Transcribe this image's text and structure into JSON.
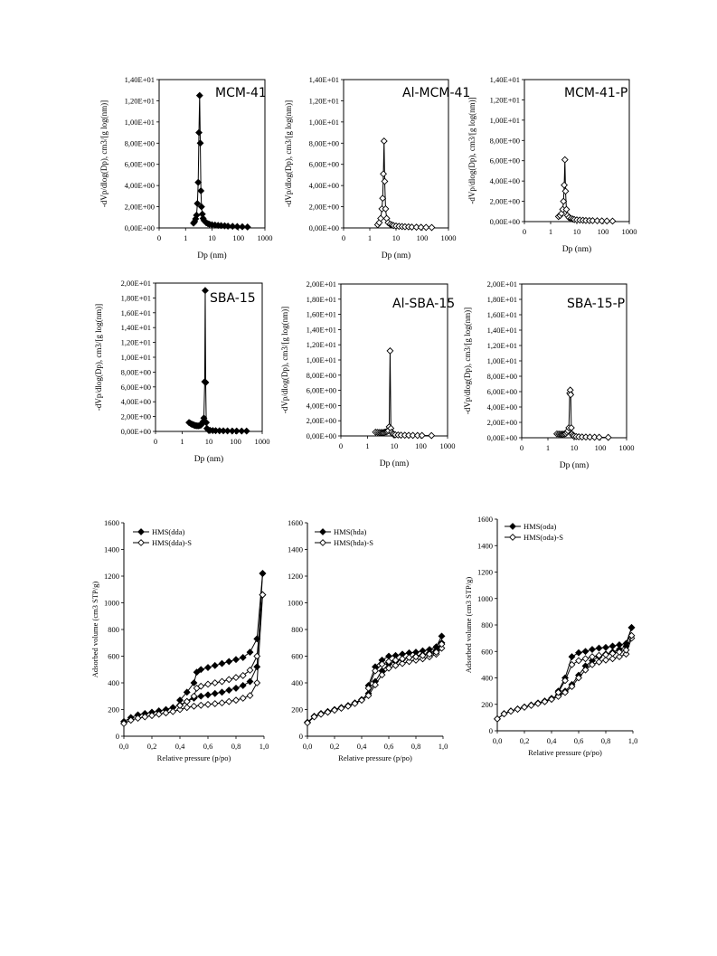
{
  "chart_data": [
    {
      "id": "mcm41",
      "type": "line",
      "title": "MCM-41",
      "xlabel": "Dp (nm)",
      "ylabel": "-dVp/dlog(Dp), cm3/[g log(nm)]",
      "xscale": "log",
      "xlim": [
        0,
        1000
      ],
      "xticks": [
        "0",
        "1",
        "10",
        "100",
        "1000"
      ],
      "ylim": [
        0,
        14
      ],
      "yticks": [
        "0,00E+00",
        "2,00E+00",
        "4,00E+00",
        "6,00E+00",
        "8,00E+00",
        "1,00E+01",
        "1,20E+01",
        "1,40E+01"
      ],
      "marker": "filled-diamond",
      "x": [
        2.0,
        2.2,
        2.4,
        2.6,
        2.8,
        3.0,
        3.2,
        3.4,
        3.6,
        3.8,
        4.0,
        4.3,
        4.6,
        5,
        6,
        7,
        8,
        10,
        13,
        17,
        22,
        30,
        40,
        60,
        90,
        140,
        220
      ],
      "values": [
        0.45,
        0.6,
        0.85,
        1.2,
        2.3,
        4.3,
        9.0,
        12.5,
        8.0,
        3.5,
        2.0,
        1.3,
        0.9,
        0.7,
        0.5,
        0.4,
        0.35,
        0.3,
        0.27,
        0.24,
        0.22,
        0.2,
        0.17,
        0.15,
        0.13,
        0.11,
        0.09
      ]
    },
    {
      "id": "almcm41",
      "type": "line",
      "title": "Al-MCM-41",
      "xlabel": "Dp (nm)",
      "ylabel": "-dVp/dlog(Dp), cm3/[g log(nm)]",
      "xscale": "log",
      "xlim": [
        0,
        1000
      ],
      "xticks": [
        "0",
        "1",
        "10",
        "100",
        "1000"
      ],
      "ylim": [
        0,
        14
      ],
      "yticks": [
        "0,00E+00",
        "2,00E+00",
        "4,00E+00",
        "6,00E+00",
        "8,00E+00",
        "1,00E+01",
        "1,20E+01",
        "1,40E+01"
      ],
      "marker": "open-diamond",
      "x": [
        2.0,
        2.3,
        2.6,
        2.9,
        3.1,
        3.3,
        3.5,
        3.7,
        4.0,
        4.4,
        5,
        6,
        7,
        8,
        10,
        13,
        17,
        22,
        30,
        40,
        60,
        90,
        140,
        230
      ],
      "values": [
        0.3,
        0.5,
        0.9,
        1.8,
        2.8,
        5.1,
        8.2,
        4.4,
        1.8,
        0.9,
        0.5,
        0.35,
        0.28,
        0.22,
        0.18,
        0.15,
        0.13,
        0.11,
        0.1,
        0.08,
        0.07,
        0.06,
        0.05,
        0.04
      ]
    },
    {
      "id": "mcm41p",
      "type": "line",
      "title": "MCM-41-P",
      "xlabel": "Dp (nm)",
      "ylabel": "-dVp/dlog(Dp), cm3/[g log(nm)]",
      "xscale": "log",
      "xlim": [
        0,
        1000
      ],
      "xticks": [
        "0",
        "1",
        "10",
        "100",
        "1000"
      ],
      "ylim": [
        0,
        14
      ],
      "yticks": [
        "0,00E+00",
        "2,00E+00",
        "4,00E+00",
        "6,00E+00",
        "8,00E+00",
        "1,00E+01",
        "1,20E+01",
        "1,40E+01"
      ],
      "marker": "open-diamond",
      "x": [
        2.0,
        2.3,
        2.6,
        2.9,
        3.1,
        3.3,
        3.5,
        3.7,
        4.0,
        4.4,
        5,
        6,
        7,
        8,
        10,
        13,
        17,
        22,
        30,
        40,
        60,
        90,
        140,
        230
      ],
      "values": [
        0.5,
        0.6,
        0.8,
        1.2,
        2.0,
        3.6,
        6.1,
        3.0,
        1.2,
        0.6,
        0.4,
        0.3,
        0.25,
        0.2,
        0.17,
        0.15,
        0.13,
        0.11,
        0.1,
        0.09,
        0.08,
        0.07,
        0.06,
        0.05
      ]
    },
    {
      "id": "sba15",
      "type": "line",
      "title": "SBA-15",
      "xlabel": "Dp (nm)",
      "ylabel": "-dVp/dlog(Dp), cm3/[g log(nm)]",
      "xscale": "log",
      "xlim": [
        0,
        1000
      ],
      "xticks": [
        "0",
        "1",
        "10",
        "100",
        "1000"
      ],
      "ylim": [
        0,
        20
      ],
      "yticks": [
        "0,00E+00",
        "2,00E+00",
        "4,00E+00",
        "6,00E+00",
        "8,00E+00",
        "1,00E+01",
        "1,20E+01",
        "1,40E+01",
        "1,60E+01",
        "1,80E+01",
        "2,00E+01"
      ],
      "marker": "filled-diamond",
      "x": [
        1.8,
        2.0,
        2.2,
        2.4,
        2.6,
        2.8,
        3.0,
        3.3,
        3.6,
        4.0,
        4.5,
        5,
        5.5,
        6,
        6.5,
        7.0,
        7.3,
        7.6,
        8.0,
        8.5,
        9.5,
        11,
        14,
        18,
        25,
        35,
        50,
        75,
        110,
        170,
        260
      ],
      "values": [
        1.2,
        1.1,
        1.0,
        0.95,
        0.9,
        0.85,
        0.8,
        0.78,
        0.76,
        0.75,
        0.78,
        0.85,
        1.0,
        1.3,
        1.8,
        6.7,
        19.0,
        6.6,
        1.2,
        0.4,
        0.2,
        0.15,
        0.12,
        0.1,
        0.09,
        0.08,
        0.07,
        0.06,
        0.06,
        0.05,
        0.05
      ]
    },
    {
      "id": "alsba15",
      "type": "line",
      "title": "Al-SBA-15",
      "xlabel": "Dp (nm)",
      "ylabel": "-dVp/dlog(Dp), cm3/[g log(nm)]",
      "xscale": "log",
      "xlim": [
        0,
        1000
      ],
      "xticks": [
        "0",
        "1",
        "10",
        "100",
        "1000"
      ],
      "ylim": [
        0,
        20
      ],
      "yticks": [
        "0,00E+00",
        "2,00E+00",
        "4,00E+00",
        "6,00E+00",
        "8,00E+00",
        "1,00E+01",
        "1,20E+01",
        "1,40E+01",
        "1,60E+01",
        "1,80E+01",
        "2,00E+01"
      ],
      "marker": "open-diamond",
      "x": [
        2.0,
        2.4,
        2.8,
        3.2,
        3.6,
        4.0,
        4.5,
        5.0,
        5.5,
        6.0,
        6.5,
        7.0,
        7.5,
        8.0,
        8.7,
        9.5,
        11,
        14,
        18,
        25,
        35,
        50,
        75,
        110,
        250
      ],
      "values": [
        0.5,
        0.48,
        0.46,
        0.45,
        0.45,
        0.46,
        0.5,
        0.55,
        0.6,
        0.7,
        1.2,
        11.2,
        1.0,
        0.5,
        0.3,
        0.2,
        0.15,
        0.12,
        0.1,
        0.09,
        0.08,
        0.07,
        0.06,
        0.06,
        0.05
      ]
    },
    {
      "id": "sba15p",
      "type": "line",
      "title": "SBA-15-P",
      "xlabel": "Dp (nm)",
      "ylabel": "-dVp/dlog(Dp), cm3/[g log(nm)]",
      "xscale": "log",
      "xlim": [
        0,
        1000
      ],
      "xticks": [
        "0",
        "1",
        "10",
        "100",
        "1000"
      ],
      "ylim": [
        0,
        20
      ],
      "yticks": [
        "0,00E+00",
        "2,00E+00",
        "4,00E+00",
        "6,00E+00",
        "8,00E+00",
        "1,00E+01",
        "1,20E+01",
        "1,40E+01",
        "1,60E+01",
        "1,80E+01",
        "2,00E+01"
      ],
      "marker": "open-diamond",
      "x": [
        2.2,
        2.6,
        3.0,
        3.4,
        3.8,
        4.3,
        4.8,
        5.3,
        5.8,
        6.3,
        6.8,
        7.1,
        7.4,
        7.8,
        8.3,
        9.0,
        10,
        12,
        15,
        20,
        28,
        40,
        60,
        90,
        200
      ],
      "values": [
        0.5,
        0.48,
        0.47,
        0.46,
        0.47,
        0.5,
        0.55,
        0.7,
        0.9,
        1.3,
        5.8,
        6.2,
        5.6,
        1.3,
        0.5,
        0.3,
        0.2,
        0.15,
        0.12,
        0.1,
        0.09,
        0.08,
        0.07,
        0.06,
        0.05
      ]
    },
    {
      "id": "hms_dda",
      "type": "line",
      "xlabel": "Relative pressure (p/po)",
      "ylabel": "Adsorbed volume (cm3 STP/g)",
      "xlim": [
        0,
        1
      ],
      "xticks": [
        "0,0",
        "0,2",
        "0,4",
        "0,6",
        "0,8",
        "1,0"
      ],
      "ylim": [
        0,
        1600
      ],
      "yticks": [
        "0",
        "200",
        "400",
        "600",
        "800",
        "1000",
        "1200",
        "1400",
        "1600"
      ],
      "legend": "top-left",
      "series": [
        {
          "name": "HMS(dda)",
          "marker": "filled-diamond",
          "x": [
            0.0,
            0.05,
            0.1,
            0.15,
            0.2,
            0.25,
            0.3,
            0.35,
            0.4,
            0.45,
            0.5,
            0.55,
            0.6,
            0.65,
            0.7,
            0.75,
            0.8,
            0.85,
            0.9,
            0.95,
            0.99
          ],
          "values": [
            110,
            140,
            160,
            170,
            180,
            190,
            200,
            215,
            235,
            260,
            285,
            300,
            310,
            320,
            330,
            345,
            360,
            380,
            410,
            520,
            1220
          ]
        },
        {
          "name": "HMS(dda)",
          "marker": "filled-diamond",
          "x": [
            0.99,
            0.95,
            0.9,
            0.85,
            0.8,
            0.75,
            0.7,
            0.65,
            0.6,
            0.55,
            0.52,
            0.5,
            0.45,
            0.4
          ],
          "values": [
            1220,
            730,
            630,
            590,
            575,
            560,
            545,
            530,
            515,
            500,
            480,
            400,
            330,
            270
          ]
        },
        {
          "name": "HMS(dda)-S",
          "marker": "open-diamond",
          "x": [
            0.0,
            0.05,
            0.1,
            0.15,
            0.2,
            0.25,
            0.3,
            0.35,
            0.4,
            0.45,
            0.5,
            0.55,
            0.6,
            0.65,
            0.7,
            0.75,
            0.8,
            0.85,
            0.9,
            0.95,
            0.99
          ],
          "values": [
            95,
            120,
            135,
            145,
            155,
            165,
            175,
            185,
            200,
            215,
            225,
            232,
            238,
            244,
            250,
            260,
            270,
            285,
            305,
            400,
            1060
          ]
        },
        {
          "name": "HMS(dda)-S",
          "marker": "open-diamond",
          "x": [
            0.99,
            0.95,
            0.9,
            0.85,
            0.8,
            0.75,
            0.7,
            0.65,
            0.6,
            0.55,
            0.52,
            0.5,
            0.45,
            0.4
          ],
          "values": [
            1060,
            600,
            495,
            455,
            440,
            425,
            410,
            400,
            390,
            375,
            360,
            300,
            260,
            230
          ]
        }
      ]
    },
    {
      "id": "hms_hda",
      "type": "line",
      "xlabel": "Relative pressure (p/po)",
      "ylabel": "",
      "xlim": [
        0,
        1
      ],
      "xticks": [
        "0,0",
        "0,2",
        "0,4",
        "0,6",
        "0,8",
        "1,0"
      ],
      "ylim": [
        0,
        1600
      ],
      "yticks": [
        "0",
        "200",
        "400",
        "600",
        "800",
        "1000",
        "1200",
        "1400",
        "1600"
      ],
      "legend": "top-left",
      "series": [
        {
          "name": "HMS(hda)",
          "marker": "filled-diamond",
          "x": [
            0.0,
            0.05,
            0.1,
            0.15,
            0.2,
            0.25,
            0.3,
            0.35,
            0.4,
            0.45,
            0.5,
            0.55,
            0.6,
            0.65,
            0.7,
            0.75,
            0.8,
            0.85,
            0.9,
            0.95,
            0.99
          ],
          "values": [
            105,
            150,
            170,
            185,
            200,
            215,
            230,
            250,
            275,
            320,
            410,
            490,
            540,
            560,
            575,
            590,
            600,
            610,
            625,
            645,
            700
          ]
        },
        {
          "name": "HMS(hda)",
          "marker": "filled-diamond",
          "x": [
            0.99,
            0.95,
            0.9,
            0.85,
            0.8,
            0.75,
            0.7,
            0.65,
            0.6,
            0.55,
            0.5,
            0.45
          ],
          "values": [
            750,
            670,
            650,
            640,
            630,
            625,
            615,
            605,
            600,
            570,
            520,
            380
          ]
        },
        {
          "name": "HMS(hda)-S",
          "marker": "open-diamond",
          "x": [
            0.0,
            0.05,
            0.1,
            0.15,
            0.2,
            0.25,
            0.3,
            0.35,
            0.4,
            0.45,
            0.5,
            0.55,
            0.6,
            0.65,
            0.7,
            0.75,
            0.8,
            0.85,
            0.9,
            0.95,
            0.99
          ],
          "values": [
            100,
            145,
            165,
            180,
            195,
            210,
            225,
            245,
            270,
            305,
            385,
            460,
            510,
            530,
            545,
            560,
            570,
            580,
            595,
            615,
            660
          ]
        },
        {
          "name": "HMS(hda)-S",
          "marker": "open-diamond",
          "x": [
            0.99,
            0.95,
            0.9,
            0.85,
            0.8,
            0.75,
            0.7,
            0.65,
            0.6,
            0.55,
            0.5,
            0.45
          ],
          "values": [
            690,
            630,
            615,
            605,
            595,
            590,
            580,
            570,
            560,
            540,
            490,
            360
          ]
        }
      ]
    },
    {
      "id": "hms_oda",
      "type": "line",
      "xlabel": "Relative pressure (p/po)",
      "ylabel": "Adsorbed volume (cm3 STP/g)",
      "xlim": [
        0,
        1
      ],
      "xticks": [
        "0,0",
        "0,2",
        "0,4",
        "0,6",
        "0,8",
        "1,0"
      ],
      "ylim": [
        0,
        1600
      ],
      "yticks": [
        "0",
        "200",
        "400",
        "600",
        "800",
        "1000",
        "1200",
        "1400",
        "1600"
      ],
      "legend": "top-left",
      "series": [
        {
          "name": "HMS(oda)",
          "marker": "filled-diamond",
          "x": [
            0.0,
            0.05,
            0.1,
            0.15,
            0.2,
            0.25,
            0.3,
            0.35,
            0.4,
            0.45,
            0.5,
            0.55,
            0.6,
            0.65,
            0.7,
            0.75,
            0.8,
            0.85,
            0.9,
            0.95,
            0.99
          ],
          "values": [
            90,
            130,
            150,
            165,
            180,
            195,
            210,
            225,
            245,
            270,
            300,
            350,
            420,
            490,
            530,
            560,
            580,
            595,
            615,
            640,
            780
          ]
        },
        {
          "name": "HMS(oda)",
          "marker": "filled-diamond",
          "x": [
            0.99,
            0.95,
            0.9,
            0.85,
            0.8,
            0.75,
            0.7,
            0.65,
            0.6,
            0.55,
            0.5,
            0.45
          ],
          "values": [
            780,
            660,
            650,
            640,
            630,
            625,
            615,
            600,
            590,
            560,
            400,
            300
          ]
        },
        {
          "name": "HMS(oda)-S",
          "marker": "open-diamond",
          "x": [
            0.0,
            0.05,
            0.1,
            0.15,
            0.2,
            0.25,
            0.3,
            0.35,
            0.4,
            0.45,
            0.5,
            0.55,
            0.6,
            0.65,
            0.7,
            0.75,
            0.8,
            0.85,
            0.9,
            0.95,
            0.99
          ],
          "values": [
            90,
            128,
            148,
            163,
            178,
            192,
            206,
            220,
            238,
            260,
            290,
            335,
            400,
            460,
            500,
            520,
            535,
            545,
            560,
            580,
            700
          ]
        },
        {
          "name": "HMS(oda)-S",
          "marker": "open-diamond",
          "x": [
            0.99,
            0.95,
            0.9,
            0.85,
            0.8,
            0.75,
            0.7,
            0.65,
            0.6,
            0.55,
            0.5,
            0.45
          ],
          "values": [
            720,
            610,
            595,
            585,
            575,
            570,
            560,
            545,
            530,
            500,
            380,
            290
          ]
        }
      ]
    }
  ]
}
